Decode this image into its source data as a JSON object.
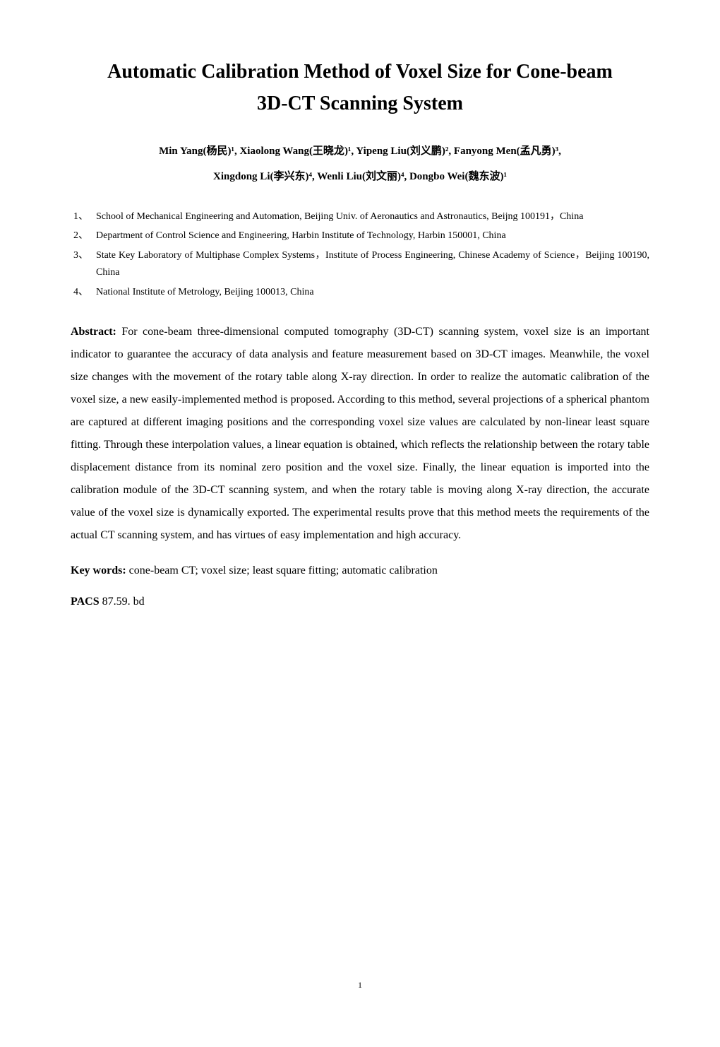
{
  "title_line1": "Automatic Calibration Method of Voxel Size for Cone-beam",
  "title_line2": "3D-CT Scanning System",
  "authors_line1": "Min Yang(杨民)¹, Xiaolong Wang(王晓龙)¹, Yipeng Liu(刘义鹏)², Fanyong Men(孟凡勇)³,",
  "authors_line2": "Xingdong Li(李兴东)⁴, Wenli Liu(刘文丽)⁴, Dongbo Wei(魏东波)¹",
  "affiliations": [
    {
      "num": "1、",
      "text": "School of Mechanical Engineering and Automation, Beijing Univ. of Aeronautics and Astronautics, Beijng 100191，China"
    },
    {
      "num": "2、",
      "text": "Department of Control Science and Engineering, Harbin Institute of Technology, Harbin 150001, China"
    },
    {
      "num": "3、",
      "text": "State Key Laboratory of Multiphase Complex Systems，Institute of Process Engineering, Chinese Academy of Science，Beijing 100190, China"
    },
    {
      "num": "4、",
      "text": "National Institute of Metrology, Beijing 100013, China"
    }
  ],
  "abstract_label": "Abstract: ",
  "abstract_body": "For cone-beam three-dimensional computed tomography (3D-CT) scanning system, voxel size is an important indicator to guarantee the accuracy of data analysis and feature measurement based on 3D-CT images. Meanwhile, the voxel size changes with the movement of the rotary table along X-ray direction. In order to realize the automatic calibration of the voxel size, a new easily-implemented method is proposed. According to this method, several projections of a spherical phantom are captured at different imaging positions and the corresponding voxel size values are calculated by non-linear least square fitting. Through these interpolation values, a linear equation is obtained, which reflects the relationship between the rotary table displacement distance from its nominal zero position and the voxel size. Finally, the linear equation is imported into the calibration module of the 3D-CT scanning system, and when the rotary table is moving along X-ray direction, the accurate value of the voxel size is dynamically exported. The experimental results prove that this method meets the requirements of the actual CT scanning system, and has virtues of easy implementation and high accuracy.",
  "keywords_label": "Key words: ",
  "keywords_text": "cone-beam CT; voxel size; least square fitting; automatic calibration",
  "pacs_label": "PACS",
  "pacs_text": "   87.59. bd",
  "page_number": "1",
  "colors": {
    "background": "#ffffff",
    "text": "#000000"
  },
  "typography": {
    "title_fontsize": 28,
    "title_weight": "bold",
    "authors_fontsize": 15,
    "affil_fontsize": 14,
    "body_fontsize": 16,
    "font_family": "Times New Roman"
  }
}
